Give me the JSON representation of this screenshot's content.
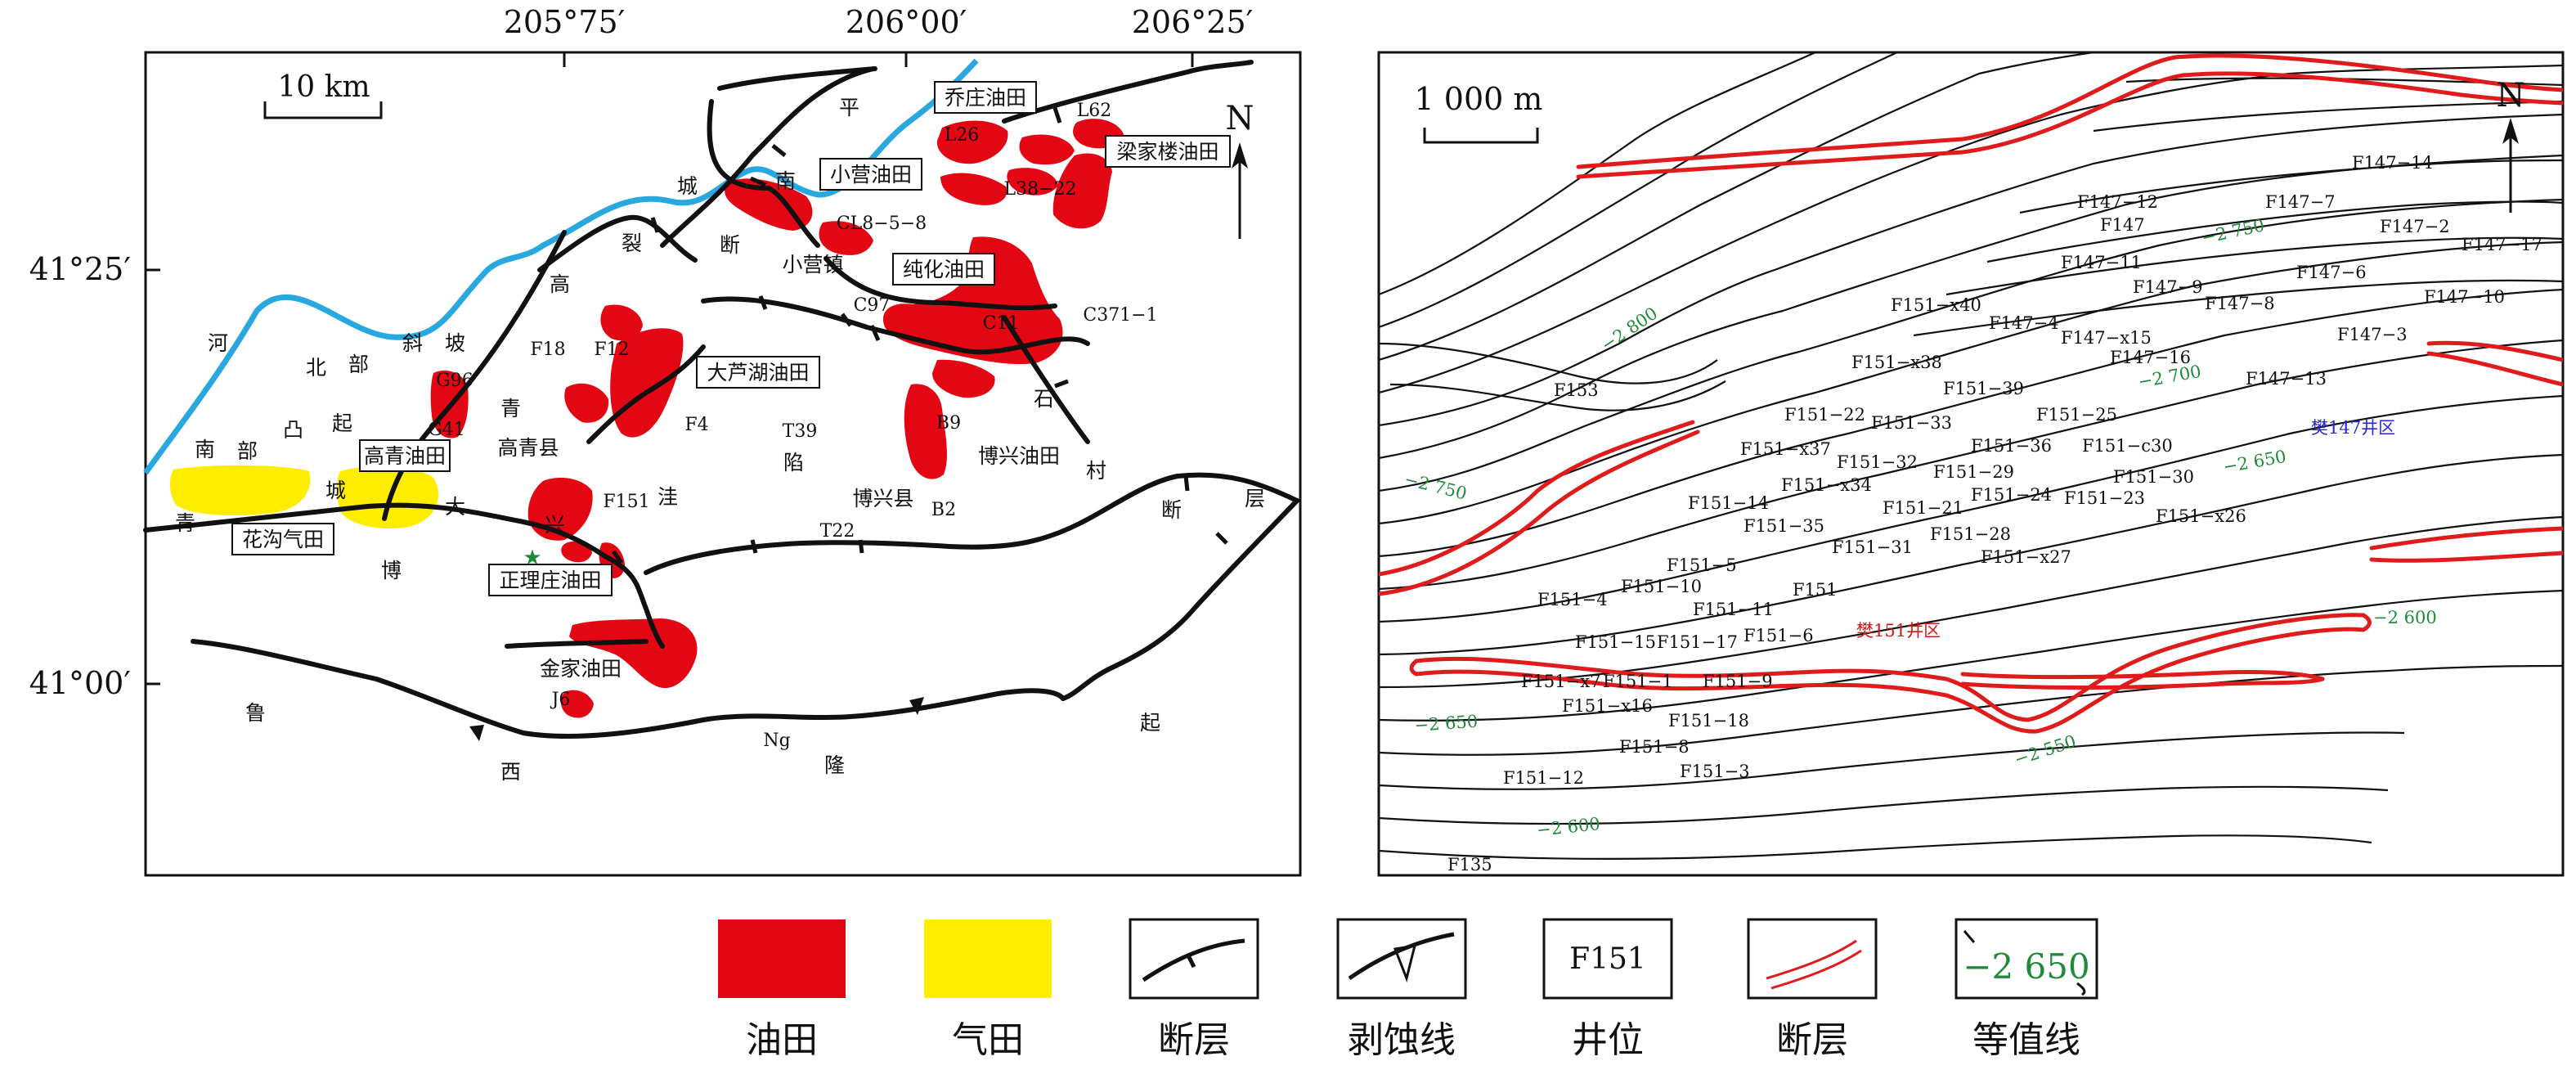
{
  "left_map": {
    "coords_top": [
      "205°75′",
      "206°00′",
      "206°25′"
    ],
    "coords_left": [
      "41°25′",
      "41°00′"
    ],
    "scale": "10 km",
    "north": "N",
    "boxed_fields": [
      "乔庄油田",
      "小营油田",
      "梁家楼油田",
      "纯化油田",
      "大芦湖油田",
      "高青油田",
      "花沟气田",
      "正理庄油田"
    ],
    "plain_labels": [
      "L62",
      "L26",
      "L38−22",
      "CL8−5−8",
      "小营镇",
      "C97",
      "C11",
      "C371−1",
      "F18",
      "F12",
      "G96",
      "G41",
      "高青县",
      "F4",
      "T39",
      "B9",
      "博兴油田",
      "F151",
      "博兴县",
      "B2",
      "T22",
      "金家油田",
      "J6",
      "Ng"
    ],
    "region_chars": [
      "平",
      "南",
      "断",
      "高",
      "裂",
      "青",
      "城",
      "河",
      "北",
      "部",
      "斜",
      "坡",
      "南",
      "部",
      "凸",
      "起",
      "博",
      "兴",
      "大",
      "洼",
      "陷",
      "石",
      "村",
      "断",
      "层",
      "鲁",
      "西",
      "隆",
      "起",
      "青",
      "城"
    ]
  },
  "right_map": {
    "scale": "1 000 m",
    "north": "N",
    "wells": [
      "F147−14",
      "F147−12",
      "F147−7",
      "F147",
      "F147−2",
      "F147−17",
      "F147−11",
      "F147−6",
      "F147−9",
      "F147−8",
      "F147−10",
      "F151−x40",
      "F147−4",
      "F147−x15",
      "F147−3",
      "F151−x38",
      "F147−16",
      "F147−13",
      "F153",
      "F151−39",
      "F151−22",
      "F151−33",
      "F151−25",
      "F151−x37",
      "F151−32",
      "F151−36",
      "F151−c30",
      "F151−x34",
      "F151−29",
      "F151−30",
      "F151−14",
      "F151−21",
      "F151−24",
      "F151−23",
      "F151−35",
      "F151−28",
      "F151−x26",
      "F151−31",
      "F151−5",
      "F151−x27",
      "F151−4",
      "F151−10",
      "F151",
      "F151−11",
      "F151−15",
      "F151−17",
      "F151−6",
      "F151−x7",
      "F151−1",
      "F151−9",
      "F151−x16",
      "F151−18",
      "F151−8",
      "F151−12",
      "F151−3",
      "F135"
    ],
    "contours": [
      "−2 800",
      "−2 750",
      "−2 700",
      "−2 650",
      "−2 750",
      "−2 600",
      "−2 650",
      "−2 550",
      "−2 600"
    ],
    "areas": [
      "樊147井区",
      "樊151井区"
    ]
  },
  "legend": [
    {
      "label": "油田",
      "color": "#e30613"
    },
    {
      "label": "气田",
      "color": "#ffed00"
    },
    {
      "label": "断层"
    },
    {
      "label": "剥蚀线"
    },
    {
      "label": "井位",
      "sample": "F151"
    },
    {
      "label": "断层"
    },
    {
      "label": "等值线",
      "sample": "−2 650"
    }
  ]
}
